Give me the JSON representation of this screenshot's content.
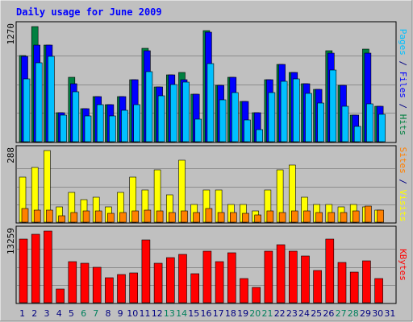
{
  "colors": {
    "background": "#c0c0c0",
    "panel": "#c0c0c0",
    "grid": "#8c8c8c",
    "title": "#0000ff",
    "hits": "#008040",
    "files": "#0000ff",
    "pages": "#00c0ff",
    "visits": "#ffff00",
    "sites": "#ff8000",
    "kbytes": "#ff0000",
    "weekend_day": "#00805c",
    "weekday": "#000080"
  },
  "chart_data": {
    "type": "bar",
    "title": "Daily usage for June 2009",
    "categories": [
      "1",
      "2",
      "3",
      "4",
      "5",
      "6",
      "7",
      "8",
      "9",
      "10",
      "11",
      "12",
      "13",
      "14",
      "15",
      "16",
      "17",
      "18",
      "19",
      "20",
      "21",
      "22",
      "23",
      "24",
      "25",
      "26",
      "27",
      "28",
      "29",
      "30",
      "31"
    ],
    "weekend_days": [
      "6",
      "7",
      "13",
      "14",
      "20",
      "21",
      "27",
      "28"
    ],
    "panels": [
      {
        "name": "hits-files-pages",
        "ymax": 1270,
        "ymax_label": "1270",
        "ylabel_parts": [
          {
            "text": "Pages",
            "color_key": "pages"
          },
          {
            "text": " / ",
            "color_key": "weekday"
          },
          {
            "text": "Files",
            "color_key": "files"
          },
          {
            "text": " / ",
            "color_key": "weekday"
          },
          {
            "text": "Hits",
            "color_key": "hits"
          }
        ],
        "series": [
          {
            "name": "Hits",
            "color_key": "hits",
            "values": [
              950,
              1270,
              1070,
              320,
              710,
              360,
              500,
              410,
              500,
              680,
              1030,
              600,
              740,
              760,
              520,
              1230,
              620,
              710,
              440,
              320,
              680,
              850,
              760,
              640,
              580,
              1000,
              620,
              290,
              1020,
              390,
              0
            ]
          },
          {
            "name": "Files",
            "color_key": "files",
            "values": [
              940,
              1070,
              1070,
              320,
              640,
              360,
              500,
              410,
              500,
              680,
              1000,
              600,
              740,
              680,
              520,
              1210,
              620,
              710,
              440,
              320,
              680,
              850,
              760,
              640,
              580,
              980,
              620,
              290,
              980,
              390,
              0
            ]
          },
          {
            "name": "Pages",
            "color_key": "pages",
            "values": [
              690,
              870,
              940,
              290,
              550,
              280,
              410,
              280,
              350,
              410,
              770,
              510,
              630,
              660,
              250,
              860,
              460,
              540,
              240,
              130,
              540,
              670,
              690,
              530,
              430,
              790,
              390,
              170,
              420,
              300,
              0
            ]
          }
        ]
      },
      {
        "name": "visits-sites",
        "ymax": 288,
        "ymax_label": "288",
        "ylabel_parts": [
          {
            "text": "Sites",
            "color_key": "sites"
          },
          {
            "text": " / ",
            "color_key": "weekday"
          },
          {
            "text": "Visits",
            "color_key": "visits"
          }
        ],
        "series": [
          {
            "name": "Visits",
            "color_key": "visits",
            "values": [
              180,
              220,
              288,
              60,
              120,
              90,
              100,
              60,
              120,
              180,
              130,
              210,
              110,
              250,
              70,
              130,
              130,
              70,
              70,
              45,
              130,
              210,
              230,
              100,
              70,
              70,
              60,
              70,
              60,
              50,
              0
            ]
          },
          {
            "name": "Sites",
            "color_key": "sites",
            "values": [
              55,
              50,
              50,
              25,
              40,
              45,
              45,
              35,
              40,
              45,
              50,
              45,
              40,
              45,
              40,
              55,
              40,
              40,
              35,
              30,
              45,
              40,
              45,
              45,
              40,
              40,
              40,
              45,
              65,
              50,
              0
            ]
          }
        ]
      },
      {
        "name": "kbytes",
        "ymax": 13259,
        "ymax_label": "13259",
        "ylabel_parts": [
          {
            "text": "KBytes",
            "color_key": "kbytes"
          }
        ],
        "series": [
          {
            "name": "KBytes",
            "color_key": "kbytes",
            "values": [
              11700,
              12700,
              13259,
              2500,
              7600,
              7300,
              6500,
              4600,
              5200,
              5500,
              11600,
              7300,
              8400,
              9000,
              5300,
              9600,
              7600,
              9300,
              4400,
              2800,
              9600,
              10700,
              9600,
              8600,
              5900,
              11800,
              7400,
              5700,
              7700,
              4500,
              0
            ]
          }
        ]
      }
    ]
  }
}
